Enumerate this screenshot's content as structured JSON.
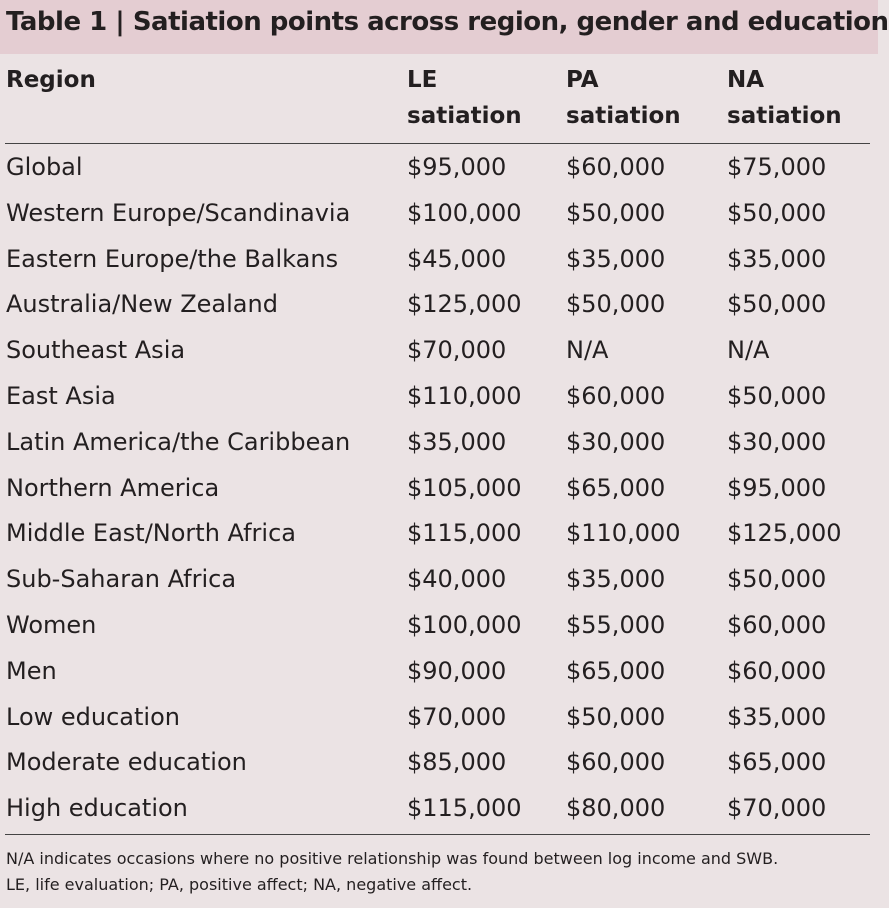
{
  "title": "Table 1 | Satiation points across region, gender and education",
  "headers": {
    "region": "Region",
    "le_line1": "LE",
    "le_line2": "satiation",
    "pa_line1": "PA",
    "pa_line2": "satiation",
    "na_line1": "NA",
    "na_line2": "satiation"
  },
  "rows": [
    {
      "region": "Global",
      "le": "$95,000",
      "pa": "$60,000",
      "na": "$75,000"
    },
    {
      "region": "Western Europe/Scandinavia",
      "le": "$100,000",
      "pa": "$50,000",
      "na": "$50,000"
    },
    {
      "region": "Eastern Europe/the Balkans",
      "le": "$45,000",
      "pa": "$35,000",
      "na": "$35,000"
    },
    {
      "region": "Australia/New Zealand",
      "le": "$125,000",
      "pa": "$50,000",
      "na": "$50,000"
    },
    {
      "region": "Southeast Asia",
      "le": "$70,000",
      "pa": "N/A",
      "na": "N/A"
    },
    {
      "region": "East Asia",
      "le": "$110,000",
      "pa": "$60,000",
      "na": "$50,000"
    },
    {
      "region": "Latin America/the Caribbean",
      "le": "$35,000",
      "pa": "$30,000",
      "na": "$30,000"
    },
    {
      "region": "Northern America",
      "le": "$105,000",
      "pa": "$65,000",
      "na": "$95,000"
    },
    {
      "region": "Middle East/North Africa",
      "le": "$115,000",
      "pa": "$110,000",
      "na": "$125,000"
    },
    {
      "region": "Sub-Saharan Africa",
      "le": "$40,000",
      "pa": "$35,000",
      "na": "$50,000"
    },
    {
      "region": "Women",
      "le": "$100,000",
      "pa": "$55,000",
      "na": "$60,000"
    },
    {
      "region": "Men",
      "le": "$90,000",
      "pa": "$65,000",
      "na": "$60,000"
    },
    {
      "region": "Low education",
      "le": "$70,000",
      "pa": "$50,000",
      "na": "$35,000"
    },
    {
      "region": "Moderate education",
      "le": "$85,000",
      "pa": "$60,000",
      "na": "$65,000"
    },
    {
      "region": "High education",
      "le": "$115,000",
      "pa": "$80,000",
      "na": "$70,000"
    }
  ],
  "footnote": {
    "line1": "N/A indicates occasions where no positive relationship was found between log income and SWB.",
    "line2": "LE, life evaluation; PA, positive affect; NA, negative affect."
  },
  "colors": {
    "title_background": "#e4cdd2",
    "page_background": "#ebe3e4",
    "text": "#231f20"
  }
}
